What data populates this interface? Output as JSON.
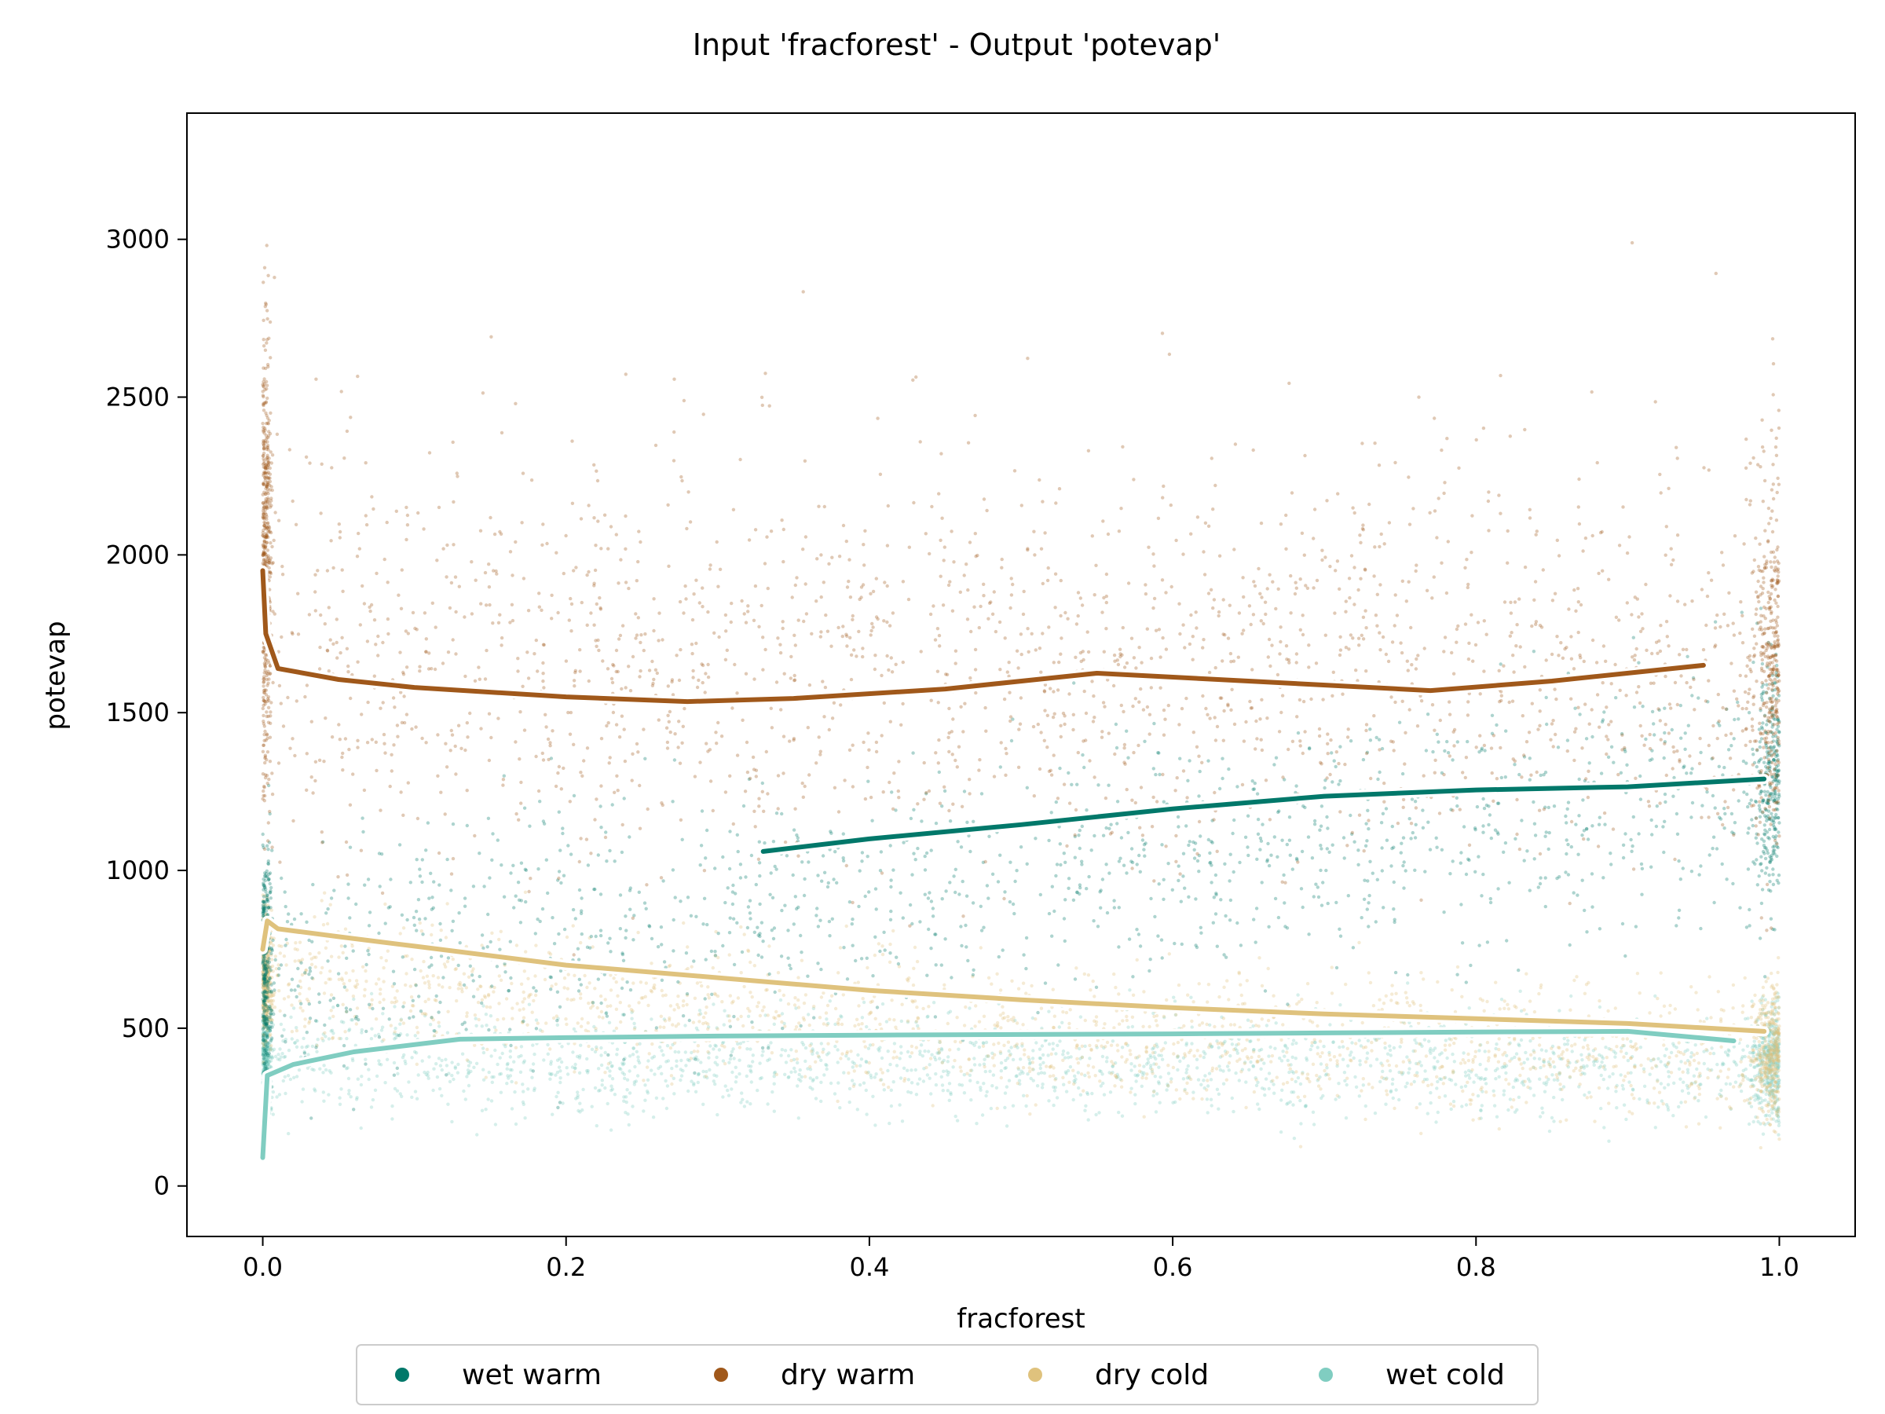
{
  "chart_data": {
    "type": "scatter",
    "title": "Input 'fracforest' - Output 'potevap'",
    "xlabel": "fracforest",
    "ylabel": "potevap",
    "xlim": [
      -0.05,
      1.05
    ],
    "ylim": [
      -160,
      3400
    ],
    "xticks": [
      0.0,
      0.2,
      0.4,
      0.6,
      0.8,
      1.0
    ],
    "xtick_labels": [
      "0.0",
      "0.2",
      "0.4",
      "0.6",
      "0.8",
      "1.0"
    ],
    "yticks": [
      0,
      500,
      1000,
      1500,
      2000,
      2500,
      3000
    ],
    "ytick_labels": [
      "0",
      "500",
      "1000",
      "1500",
      "2000",
      "2500",
      "3000"
    ],
    "grid": false,
    "legend_position": "bottom-center, below axes",
    "series": [
      {
        "name": "wet warm",
        "color": "#01786a",
        "trend_line": {
          "x": [
            0.33,
            0.4,
            0.5,
            0.6,
            0.7,
            0.8,
            0.9,
            0.99
          ],
          "y": [
            1060,
            1100,
            1145,
            1195,
            1235,
            1255,
            1265,
            1290
          ]
        }
      },
      {
        "name": "dry warm",
        "color": "#a0581a",
        "trend_line": {
          "x": [
            0.0,
            0.002,
            0.01,
            0.05,
            0.1,
            0.2,
            0.28,
            0.35,
            0.45,
            0.55,
            0.65,
            0.77,
            0.85,
            0.95
          ],
          "y": [
            1950,
            1750,
            1640,
            1605,
            1580,
            1550,
            1535,
            1545,
            1575,
            1625,
            1600,
            1570,
            1600,
            1650
          ]
        }
      },
      {
        "name": "dry cold",
        "color": "#dfc27d",
        "trend_line": {
          "x": [
            0.0,
            0.003,
            0.01,
            0.05,
            0.1,
            0.2,
            0.3,
            0.4,
            0.5,
            0.6,
            0.7,
            0.8,
            0.9,
            0.99
          ],
          "y": [
            750,
            840,
            815,
            790,
            760,
            700,
            660,
            620,
            590,
            565,
            545,
            530,
            515,
            490
          ]
        }
      },
      {
        "name": "wet cold",
        "color": "#80cdc1",
        "trend_line": {
          "x": [
            0.0,
            0.003,
            0.02,
            0.06,
            0.13,
            0.2,
            0.3,
            0.4,
            0.5,
            0.6,
            0.7,
            0.8,
            0.9,
            0.97
          ],
          "y": [
            90,
            350,
            385,
            425,
            465,
            470,
            475,
            478,
            480,
            482,
            485,
            488,
            490,
            460
          ]
        }
      }
    ]
  },
  "legend": {
    "items": [
      {
        "label": "wet warm",
        "color": "#01786a"
      },
      {
        "label": "dry warm",
        "color": "#a0581a"
      },
      {
        "label": "dry cold",
        "color": "#dfc27d"
      },
      {
        "label": "wet cold",
        "color": "#80cdc1"
      }
    ]
  }
}
